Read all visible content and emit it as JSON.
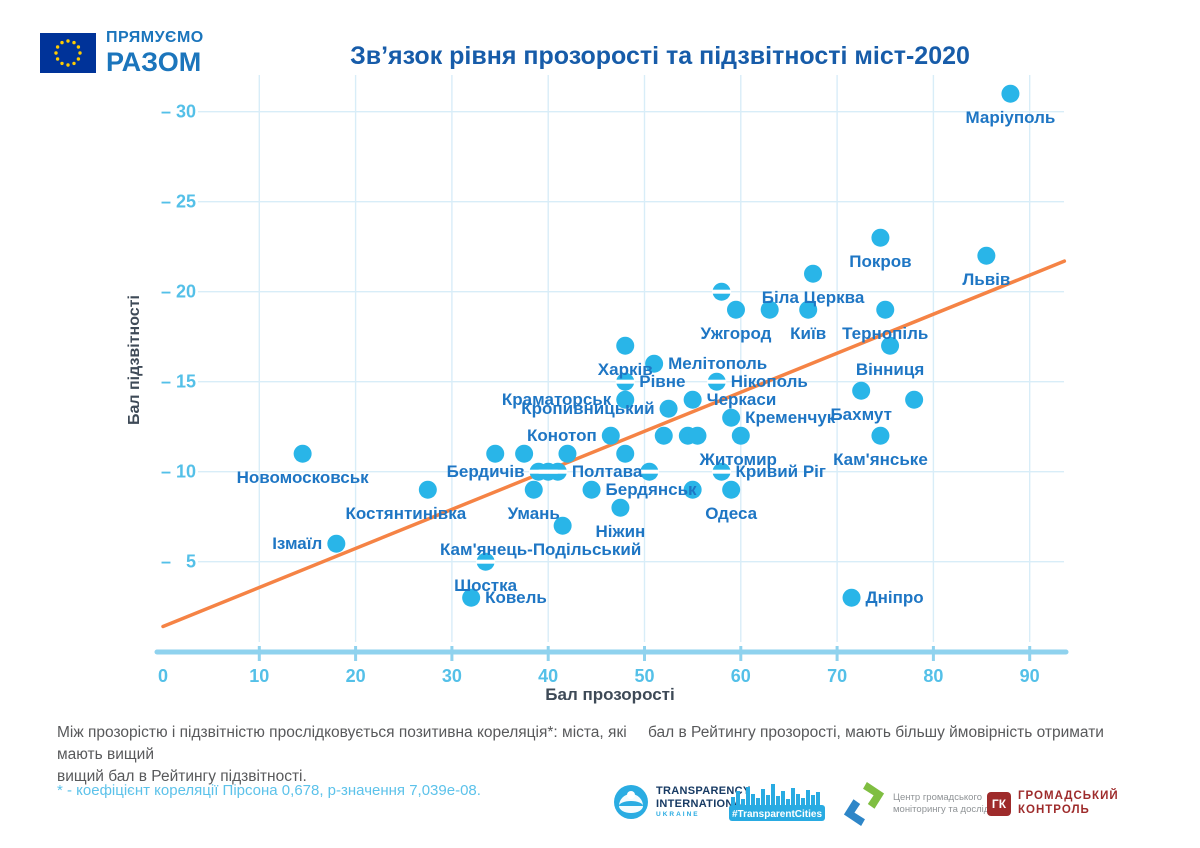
{
  "header": {
    "title": "Зв’язок рівня прозорості та підзвітності міст-2020"
  },
  "chart_data": {
    "type": "scatter",
    "title": "Зв’язок рівня прозорості та підзвітності міст-2020",
    "xlabel": "Бал прозорості",
    "ylabel": "Бал підзвітності",
    "xlim": [
      0,
      93.6
    ],
    "ylim": [
      0,
      31.5
    ],
    "x_ticks": [
      0,
      10,
      20,
      30,
      40,
      50,
      60,
      70,
      80,
      90
    ],
    "y_ticks": [
      5,
      10,
      15,
      20,
      25,
      30
    ],
    "grid": true,
    "points": [
      {
        "city": "Маріуполь",
        "x": 88,
        "y": 31,
        "pos": "below"
      },
      {
        "city": "Покров",
        "x": 74.5,
        "y": 23,
        "pos": "below"
      },
      {
        "city": "Львів",
        "x": 85.5,
        "y": 22,
        "pos": "below"
      },
      {
        "city": "Біла Церква",
        "x": 67.5,
        "y": 21,
        "pos": "below"
      },
      {
        "city": "",
        "x": 58,
        "y": 20
      },
      {
        "city": "Ужгород",
        "x": 59.5,
        "y": 19,
        "pos": "below"
      },
      {
        "city": "",
        "x": 63,
        "y": 19
      },
      {
        "city": "Київ",
        "x": 67,
        "y": 19,
        "pos": "below"
      },
      {
        "city": "Тернопіль",
        "x": 75,
        "y": 19,
        "pos": "below"
      },
      {
        "city": "Харків",
        "x": 48,
        "y": 17,
        "pos": "below"
      },
      {
        "city": "Вінниця",
        "x": 75.5,
        "y": 17,
        "pos": "below"
      },
      {
        "city": "Мелітополь",
        "x": 51,
        "y": 16,
        "pos": "right"
      },
      {
        "city": "Рівне",
        "x": 48,
        "y": 15,
        "pos": "right"
      },
      {
        "city": "Нікополь",
        "x": 57.5,
        "y": 15,
        "pos": "right"
      },
      {
        "city": "Краматорськ",
        "x": 48,
        "y": 14,
        "pos": "left"
      },
      {
        "city": "Черкаси",
        "x": 55,
        "y": 14,
        "pos": "right"
      },
      {
        "city": "Бахмут",
        "x": 72.5,
        "y": 14.5,
        "pos": "below"
      },
      {
        "city": "",
        "x": 78,
        "y": 14
      },
      {
        "city": "Кропивницький",
        "x": 52.5,
        "y": 13.5,
        "pos": "left"
      },
      {
        "city": "Кременчук",
        "x": 59,
        "y": 13,
        "pos": "right"
      },
      {
        "city": "Конотоп",
        "x": 46.5,
        "y": 12,
        "pos": "left"
      },
      {
        "city": "",
        "x": 52,
        "y": 12
      },
      {
        "city": "",
        "x": 54.5,
        "y": 12
      },
      {
        "city": "Житомир",
        "x": 55.5,
        "y": 12,
        "pos": "below-right"
      },
      {
        "city": "",
        "x": 60,
        "y": 12
      },
      {
        "city": "Кам'янське",
        "x": 74.5,
        "y": 12,
        "pos": "below"
      },
      {
        "city": "Новомосковськ",
        "x": 14.5,
        "y": 11,
        "pos": "below"
      },
      {
        "city": "",
        "x": 34.5,
        "y": 11
      },
      {
        "city": "",
        "x": 37.5,
        "y": 11
      },
      {
        "city": "",
        "x": 42,
        "y": 11
      },
      {
        "city": "",
        "x": 48,
        "y": 11
      },
      {
        "city": "Бердичів",
        "x": 39,
        "y": 10,
        "pos": "left"
      },
      {
        "city": "",
        "x": 40,
        "y": 10
      },
      {
        "city": "Полтава",
        "x": 41,
        "y": 10,
        "pos": "right"
      },
      {
        "city": "",
        "x": 50.5,
        "y": 10
      },
      {
        "city": "Кривий Ріг",
        "x": 58,
        "y": 10,
        "pos": "right"
      },
      {
        "city": "Костянтинівка",
        "x": 27.5,
        "y": 9,
        "pos": "below-left"
      },
      {
        "city": "Умань",
        "x": 38.5,
        "y": 9,
        "pos": "below"
      },
      {
        "city": "Бердянськ",
        "x": 44.5,
        "y": 9,
        "pos": "right"
      },
      {
        "city": "",
        "x": 55,
        "y": 9
      },
      {
        "city": "Одеса",
        "x": 59,
        "y": 9,
        "pos": "below"
      },
      {
        "city": "Ніжин",
        "x": 47.5,
        "y": 8,
        "pos": "below"
      },
      {
        "city": "Кам'янець-Подільський",
        "x": 41.5,
        "y": 7,
        "pos": "below-left"
      },
      {
        "city": "Ізмаїл",
        "x": 18,
        "y": 6,
        "pos": "left"
      },
      {
        "city": "Шостка",
        "x": 33.5,
        "y": 5,
        "pos": "below"
      },
      {
        "city": "Ковель",
        "x": 32,
        "y": 3,
        "pos": "right"
      },
      {
        "city": "Дніпро",
        "x": 71.5,
        "y": 3,
        "pos": "right"
      }
    ],
    "trend": {
      "x0": 0,
      "y0": 1.4,
      "x1": 93.6,
      "y1": 21.7
    },
    "colors": {
      "dot": "#29b5e8",
      "label": "#1e76c4",
      "tick": "#54c0e8",
      "axis": "#8fd2ee",
      "grid": "#d8edf8",
      "trend": "#f58345",
      "axis_title": "#3e4a57"
    }
  },
  "footnote": {
    "line1_left": "Між прозорістю і підзвітністю прослідковується позитивна кореляція*: міста, які мають вищий",
    "line1_right": "бал в Рейтингу прозорості, мають більшу ймовірність отримати",
    "line2": "вищий бал в Рейтингу підзвітності.",
    "asterisk": "* - коефіцієнт кореляції Пірсона 0,678, p-значення 7,039e-08."
  },
  "logos": {
    "eu": {
      "line1": "ПРЯМУЄМО",
      "line2": "РАЗОМ"
    },
    "ti": {
      "line1": "TRANSPARENCY",
      "line2": "INTERNATIONAL",
      "line3": "UKRAINE"
    },
    "tc": {
      "label": "#TransparentCities"
    },
    "center": {
      "line1": "Центр громадського",
      "line2": "моніторингу та досліджень"
    },
    "gk": {
      "abbr": "ГК",
      "line1": "ГРОМАДСЬКИЙ",
      "line2": "КОНТРОЛЬ"
    }
  }
}
